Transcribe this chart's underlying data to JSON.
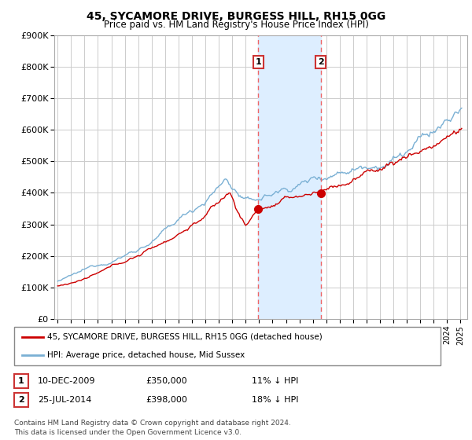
{
  "title": "45, SYCAMORE DRIVE, BURGESS HILL, RH15 0GG",
  "subtitle": "Price paid vs. HM Land Registry's House Price Index (HPI)",
  "ylabel_ticks": [
    "£0",
    "£100K",
    "£200K",
    "£300K",
    "£400K",
    "£500K",
    "£600K",
    "£700K",
    "£800K",
    "£900K"
  ],
  "ylim": [
    0,
    900000
  ],
  "xlim_start": 1994.75,
  "xlim_end": 2025.5,
  "transaction1": {
    "date": "10-DEC-2009",
    "price": 350000,
    "label": "11% ↓ HPI",
    "x": 2009.94
  },
  "transaction2": {
    "date": "25-JUL-2014",
    "price": 398000,
    "label": "18% ↓ HPI",
    "x": 2014.58
  },
  "legend_line1": "45, SYCAMORE DRIVE, BURGESS HILL, RH15 0GG (detached house)",
  "legend_line2": "HPI: Average price, detached house, Mid Sussex",
  "footnote": "Contains HM Land Registry data © Crown copyright and database right 2024.\nThis data is licensed under the Open Government Licence v3.0.",
  "line_color_red": "#cc0000",
  "line_color_blue": "#7ab0d4",
  "shaded_region_color": "#ddeeff",
  "dashed_line_color": "#ee6666",
  "background_color": "#ffffff",
  "grid_color": "#cccccc"
}
